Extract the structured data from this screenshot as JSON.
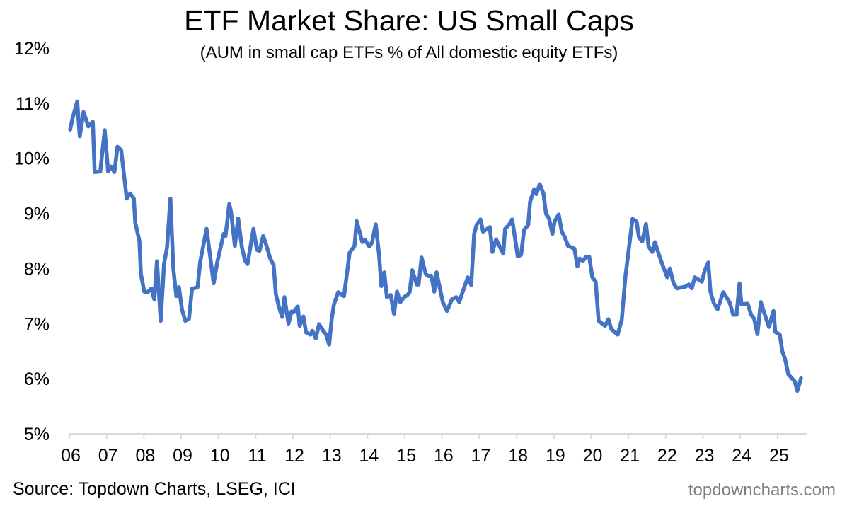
{
  "chart_data": {
    "type": "line",
    "title": "ETF Market Share: US Small Caps",
    "subtitle": "(AUM in small cap ETFs % of All domestic equity ETFs)",
    "xlabel": "",
    "ylabel": "",
    "ylim": [
      5,
      12
    ],
    "xlim": [
      2006,
      2025.8
    ],
    "y_ticks": [
      "5%",
      "6%",
      "7%",
      "8%",
      "9%",
      "10%",
      "11%",
      "12%"
    ],
    "x_ticks": [
      "06",
      "07",
      "08",
      "09",
      "10",
      "11",
      "12",
      "13",
      "14",
      "15",
      "16",
      "17",
      "18",
      "19",
      "20",
      "21",
      "22",
      "23",
      "24",
      "25"
    ],
    "grid": false,
    "legend": "none",
    "series": [
      {
        "name": "Small cap ETF AUM % of domestic equity ETFs",
        "color": "#4472c4",
        "points": [
          [
            2006.02,
            10.52
          ],
          [
            2006.08,
            10.71
          ],
          [
            2006.21,
            11.03
          ],
          [
            2006.28,
            10.4
          ],
          [
            2006.38,
            10.84
          ],
          [
            2006.51,
            10.58
          ],
          [
            2006.63,
            10.66
          ],
          [
            2006.68,
            9.75
          ],
          [
            2006.83,
            9.76
          ],
          [
            2006.95,
            10.51
          ],
          [
            2007.04,
            9.76
          ],
          [
            2007.12,
            9.85
          ],
          [
            2007.21,
            9.75
          ],
          [
            2007.29,
            10.21
          ],
          [
            2007.39,
            10.15
          ],
          [
            2007.54,
            9.27
          ],
          [
            2007.63,
            9.36
          ],
          [
            2007.73,
            9.27
          ],
          [
            2007.77,
            8.83
          ],
          [
            2007.88,
            8.5
          ],
          [
            2007.92,
            7.9
          ],
          [
            2008.01,
            7.58
          ],
          [
            2008.1,
            7.57
          ],
          [
            2008.2,
            7.64
          ],
          [
            2008.28,
            7.44
          ],
          [
            2008.35,
            8.13
          ],
          [
            2008.45,
            7.05
          ],
          [
            2008.54,
            8.08
          ],
          [
            2008.62,
            8.38
          ],
          [
            2008.71,
            9.27
          ],
          [
            2008.79,
            7.99
          ],
          [
            2008.87,
            7.5
          ],
          [
            2008.94,
            7.66
          ],
          [
            2009.02,
            7.26
          ],
          [
            2009.11,
            7.05
          ],
          [
            2009.21,
            7.09
          ],
          [
            2009.29,
            7.63
          ],
          [
            2009.44,
            7.66
          ],
          [
            2009.51,
            8.12
          ],
          [
            2009.68,
            8.72
          ],
          [
            2009.78,
            8.21
          ],
          [
            2009.87,
            7.73
          ],
          [
            2009.97,
            8.12
          ],
          [
            2010.14,
            8.63
          ],
          [
            2010.19,
            8.59
          ],
          [
            2010.29,
            9.17
          ],
          [
            2010.34,
            9.02
          ],
          [
            2010.44,
            8.41
          ],
          [
            2010.53,
            8.91
          ],
          [
            2010.63,
            8.38
          ],
          [
            2010.71,
            8.15
          ],
          [
            2010.78,
            8.08
          ],
          [
            2010.94,
            8.72
          ],
          [
            2011.03,
            8.34
          ],
          [
            2011.1,
            8.32
          ],
          [
            2011.2,
            8.59
          ],
          [
            2011.29,
            8.41
          ],
          [
            2011.39,
            8.18
          ],
          [
            2011.48,
            8.06
          ],
          [
            2011.54,
            7.54
          ],
          [
            2011.62,
            7.31
          ],
          [
            2011.71,
            7.12
          ],
          [
            2011.77,
            7.48
          ],
          [
            2011.88,
            7.0
          ],
          [
            2011.96,
            7.22
          ],
          [
            2012.03,
            7.22
          ],
          [
            2012.13,
            7.31
          ],
          [
            2012.18,
            6.96
          ],
          [
            2012.28,
            7.13
          ],
          [
            2012.35,
            6.84
          ],
          [
            2012.47,
            6.8
          ],
          [
            2012.52,
            6.87
          ],
          [
            2012.61,
            6.73
          ],
          [
            2012.7,
            6.99
          ],
          [
            2012.81,
            6.87
          ],
          [
            2012.89,
            6.8
          ],
          [
            2012.97,
            6.62
          ],
          [
            2013.04,
            7.09
          ],
          [
            2013.1,
            7.35
          ],
          [
            2013.21,
            7.57
          ],
          [
            2013.37,
            7.5
          ],
          [
            2013.52,
            8.29
          ],
          [
            2013.65,
            8.41
          ],
          [
            2013.71,
            8.86
          ],
          [
            2013.86,
            8.48
          ],
          [
            2013.93,
            8.52
          ],
          [
            2014.05,
            8.4
          ],
          [
            2014.12,
            8.47
          ],
          [
            2014.22,
            8.8
          ],
          [
            2014.31,
            8.25
          ],
          [
            2014.37,
            7.68
          ],
          [
            2014.45,
            7.93
          ],
          [
            2014.52,
            7.48
          ],
          [
            2014.62,
            7.52
          ],
          [
            2014.71,
            7.18
          ],
          [
            2014.79,
            7.58
          ],
          [
            2014.88,
            7.39
          ],
          [
            2014.98,
            7.48
          ],
          [
            2015.07,
            7.52
          ],
          [
            2015.13,
            7.57
          ],
          [
            2015.2,
            7.97
          ],
          [
            2015.32,
            7.71
          ],
          [
            2015.37,
            7.71
          ],
          [
            2015.45,
            8.2
          ],
          [
            2015.56,
            7.9
          ],
          [
            2015.64,
            7.86
          ],
          [
            2015.71,
            7.87
          ],
          [
            2015.79,
            7.58
          ],
          [
            2015.85,
            7.93
          ],
          [
            2016.02,
            7.39
          ],
          [
            2016.13,
            7.23
          ],
          [
            2016.27,
            7.45
          ],
          [
            2016.38,
            7.48
          ],
          [
            2016.46,
            7.39
          ],
          [
            2016.57,
            7.61
          ],
          [
            2016.69,
            7.84
          ],
          [
            2016.78,
            7.7
          ],
          [
            2016.86,
            8.63
          ],
          [
            2016.93,
            8.8
          ],
          [
            2017.03,
            8.89
          ],
          [
            2017.1,
            8.67
          ],
          [
            2017.28,
            8.75
          ],
          [
            2017.35,
            8.3
          ],
          [
            2017.45,
            8.53
          ],
          [
            2017.64,
            8.27
          ],
          [
            2017.69,
            8.72
          ],
          [
            2017.79,
            8.79
          ],
          [
            2017.88,
            8.89
          ],
          [
            2018.03,
            8.22
          ],
          [
            2018.12,
            8.25
          ],
          [
            2018.2,
            8.7
          ],
          [
            2018.31,
            8.79
          ],
          [
            2018.36,
            9.21
          ],
          [
            2018.47,
            9.44
          ],
          [
            2018.53,
            9.35
          ],
          [
            2018.62,
            9.53
          ],
          [
            2018.72,
            9.36
          ],
          [
            2018.79,
            8.99
          ],
          [
            2018.87,
            8.91
          ],
          [
            2018.96,
            8.63
          ],
          [
            2019.02,
            8.86
          ],
          [
            2019.13,
            8.98
          ],
          [
            2019.21,
            8.67
          ],
          [
            2019.29,
            8.57
          ],
          [
            2019.38,
            8.41
          ],
          [
            2019.55,
            8.36
          ],
          [
            2019.63,
            8.04
          ],
          [
            2019.69,
            8.18
          ],
          [
            2019.78,
            8.14
          ],
          [
            2019.86,
            8.21
          ],
          [
            2019.95,
            8.21
          ],
          [
            2020.03,
            7.84
          ],
          [
            2020.12,
            7.76
          ],
          [
            2020.2,
            7.05
          ],
          [
            2020.37,
            6.96
          ],
          [
            2020.46,
            7.08
          ],
          [
            2020.54,
            6.9
          ],
          [
            2020.71,
            6.8
          ],
          [
            2020.82,
            7.07
          ],
          [
            2020.92,
            7.86
          ],
          [
            2021.11,
            8.9
          ],
          [
            2021.22,
            8.85
          ],
          [
            2021.28,
            8.57
          ],
          [
            2021.37,
            8.49
          ],
          [
            2021.47,
            8.81
          ],
          [
            2021.54,
            8.4
          ],
          [
            2021.64,
            8.3
          ],
          [
            2021.71,
            8.48
          ],
          [
            2021.81,
            8.27
          ],
          [
            2021.9,
            8.09
          ],
          [
            2022.04,
            7.84
          ],
          [
            2022.11,
            8.0
          ],
          [
            2022.21,
            7.73
          ],
          [
            2022.3,
            7.64
          ],
          [
            2022.53,
            7.67
          ],
          [
            2022.62,
            7.71
          ],
          [
            2022.7,
            7.64
          ],
          [
            2022.78,
            7.84
          ],
          [
            2022.97,
            7.76
          ],
          [
            2023.05,
            7.97
          ],
          [
            2023.14,
            8.11
          ],
          [
            2023.2,
            7.58
          ],
          [
            2023.29,
            7.37
          ],
          [
            2023.39,
            7.26
          ],
          [
            2023.54,
            7.57
          ],
          [
            2023.71,
            7.39
          ],
          [
            2023.81,
            7.16
          ],
          [
            2023.9,
            7.16
          ],
          [
            2023.98,
            7.73
          ],
          [
            2024.03,
            7.35
          ],
          [
            2024.2,
            7.36
          ],
          [
            2024.29,
            7.16
          ],
          [
            2024.37,
            7.09
          ],
          [
            2024.46,
            6.81
          ],
          [
            2024.55,
            7.39
          ],
          [
            2024.66,
            7.16
          ],
          [
            2024.77,
            6.94
          ],
          [
            2024.89,
            7.23
          ],
          [
            2024.94,
            6.85
          ],
          [
            2025.06,
            6.8
          ],
          [
            2025.13,
            6.49
          ],
          [
            2025.2,
            6.36
          ],
          [
            2025.29,
            6.08
          ],
          [
            2025.46,
            5.95
          ],
          [
            2025.53,
            5.78
          ],
          [
            2025.63,
            6.01
          ]
        ]
      }
    ],
    "source": "Source: Topdown Charts, LSEG, ICI",
    "watermark": "topdowncharts.com"
  }
}
